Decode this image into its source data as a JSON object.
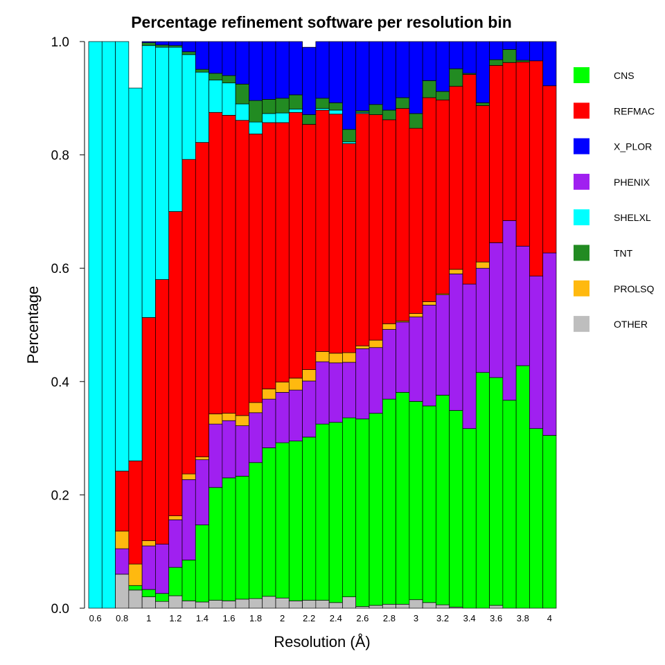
{
  "chart_data": {
    "type": "bar",
    "stacked": true,
    "title": "Percentage refinement software per resolution bin",
    "xlabel": "Resolution (Å)",
    "ylabel": "Percentage",
    "ylim": [
      0,
      1
    ],
    "yticks": [
      "0.0",
      "0.2",
      "0.4",
      "0.6",
      "0.8",
      "1.0"
    ],
    "grid": false,
    "legend_position": "right",
    "categories": [
      "0.6",
      "0.7",
      "0.8",
      "0.9",
      "1",
      "1.1",
      "1.2",
      "1.3",
      "1.4",
      "1.5",
      "1.6",
      "1.7",
      "1.8",
      "1.9",
      "2",
      "2.1",
      "2.2",
      "2.3",
      "2.4",
      "2.5",
      "2.6",
      "2.7",
      "2.8",
      "2.9",
      "3",
      "3.1",
      "3.2",
      "3.3",
      "3.4",
      "3.5",
      "3.6",
      "3.7",
      "3.8",
      "3.9",
      "4"
    ],
    "xtick_labels": [
      "0.6",
      "0.8",
      "1",
      "1.2",
      "1.4",
      "1.6",
      "1.8",
      "2",
      "2.2",
      "2.4",
      "2.6",
      "2.8",
      "3",
      "3.2",
      "3.4",
      "3.6",
      "3.8",
      "4"
    ],
    "series": [
      {
        "name": "OTHER",
        "color": "#bebebe",
        "values": [
          0,
          0,
          0.06,
          0.032,
          0.02,
          0.012,
          0.022,
          0.013,
          0.011,
          0.014,
          0.013,
          0.016,
          0.017,
          0.021,
          0.018,
          0.013,
          0.014,
          0.014,
          0.01,
          0.02,
          0.003,
          0.005,
          0.007,
          0.007,
          0.015,
          0.01,
          0.006,
          0.002,
          0,
          0,
          0.005,
          0,
          0,
          0,
          0
        ]
      },
      {
        "name": "CNS",
        "color": "#00ff00",
        "values": [
          0,
          0,
          0,
          0.008,
          0.013,
          0.014,
          0.05,
          0.072,
          0.136,
          0.199,
          0.217,
          0.217,
          0.24,
          0.262,
          0.274,
          0.282,
          0.288,
          0.311,
          0.318,
          0.316,
          0.331,
          0.339,
          0.362,
          0.374,
          0.35,
          0.347,
          0.37,
          0.347,
          0.317,
          0.416,
          0.402,
          0.367,
          0.428,
          0.317,
          0.305
        ]
      },
      {
        "name": "PHENIX",
        "color": "#a020f0",
        "values": [
          0,
          0,
          0.045,
          0,
          0.077,
          0.087,
          0.084,
          0.142,
          0.115,
          0.112,
          0.101,
          0.089,
          0.088,
          0.086,
          0.089,
          0.09,
          0.099,
          0.11,
          0.105,
          0.098,
          0.124,
          0.116,
          0.123,
          0.124,
          0.149,
          0.178,
          0.177,
          0.241,
          0.255,
          0.184,
          0.238,
          0.317,
          0.211,
          0.269,
          0.322
        ]
      },
      {
        "name": "PROLSQ",
        "color": "#ffb90f",
        "values": [
          0,
          0,
          0.031,
          0.038,
          0.009,
          0,
          0.007,
          0.01,
          0.005,
          0.018,
          0.013,
          0.018,
          0.018,
          0.018,
          0.018,
          0.021,
          0.02,
          0.018,
          0.017,
          0.017,
          0.005,
          0.013,
          0.01,
          0.002,
          0.006,
          0.006,
          0.002,
          0.008,
          0,
          0.011,
          0,
          0,
          0,
          0,
          0
        ]
      },
      {
        "name": "REFMAC",
        "color": "#ff0000",
        "values": [
          0,
          0,
          0.106,
          0.182,
          0.394,
          0.467,
          0.537,
          0.555,
          0.555,
          0.532,
          0.526,
          0.521,
          0.474,
          0.47,
          0.458,
          0.469,
          0.433,
          0.426,
          0.422,
          0.369,
          0.41,
          0.398,
          0.36,
          0.375,
          0.327,
          0.36,
          0.342,
          0.323,
          0.37,
          0.276,
          0.313,
          0.279,
          0.325,
          0.38,
          0.295
        ]
      },
      {
        "name": "SHELXL",
        "color": "#00ffff",
        "values": [
          1,
          1,
          0.758,
          0.658,
          0.48,
          0.41,
          0.29,
          0.185,
          0.124,
          0.057,
          0.057,
          0.029,
          0.021,
          0.016,
          0.017,
          0.006,
          0,
          0.003,
          0.007,
          0.003,
          0.002,
          0,
          0,
          0,
          0,
          0,
          0,
          0,
          0,
          0,
          0,
          0,
          0,
          0,
          0
        ]
      },
      {
        "name": "TNT",
        "color": "#228b22",
        "values": [
          0,
          0,
          0,
          0,
          0.005,
          0.004,
          0.003,
          0.005,
          0.005,
          0.012,
          0.013,
          0.035,
          0.038,
          0.025,
          0.026,
          0.025,
          0.017,
          0.018,
          0.013,
          0.022,
          0.003,
          0.018,
          0.017,
          0.019,
          0.026,
          0.03,
          0.015,
          0.031,
          0.002,
          0.005,
          0.01,
          0.023,
          0.003,
          0,
          0
        ]
      },
      {
        "name": "X_PLOR",
        "color": "#0000ff",
        "values": [
          0,
          0,
          0,
          0,
          0.003,
          0.006,
          0.007,
          0.018,
          0.049,
          0.056,
          0.06,
          0.075,
          0.104,
          0.102,
          0.1,
          0.094,
          0.119,
          0.11,
          0.108,
          0.155,
          0.122,
          0.111,
          0.121,
          0.099,
          0.127,
          0.069,
          0.088,
          0.048,
          0.056,
          0.108,
          0.032,
          0.014,
          0.033,
          0.034,
          0.078
        ]
      }
    ],
    "legend_order": [
      "CNS",
      "REFMAC",
      "X_PLOR",
      "PHENIX",
      "SHELXL",
      "TNT",
      "PROLSQ",
      "OTHER"
    ]
  }
}
